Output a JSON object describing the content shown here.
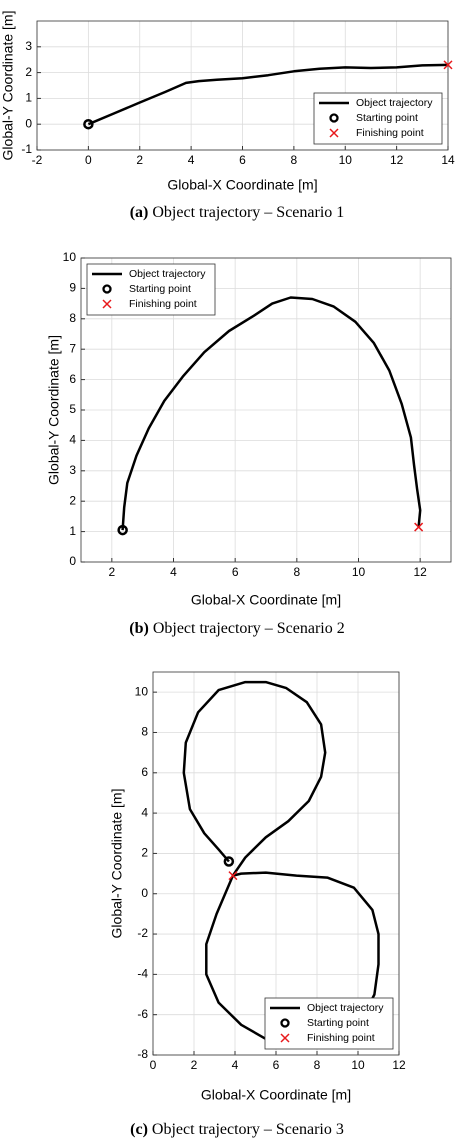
{
  "chart_data": [
    {
      "type": "line",
      "caption_tag": "(a)",
      "caption": "Object trajectory – Scenario 1",
      "xlabel": "Global-X Coordinate [m]",
      "ylabel": "Global-Y Coordinate [m]",
      "xlim": [
        -2,
        14
      ],
      "xticks": [
        -2,
        0,
        2,
        4,
        6,
        8,
        10,
        12,
        14
      ],
      "ylim": [
        -1,
        4
      ],
      "yticks": [
        -1,
        0,
        1,
        2,
        3
      ],
      "grid": true,
      "legend": "lower right",
      "series": [
        {
          "name": "Object trajectory",
          "color": "#000000",
          "marker": "line",
          "x": [
            0,
            1,
            2,
            3,
            3.8,
            4.3,
            5,
            6,
            7,
            8,
            9,
            10,
            11,
            12,
            13,
            14
          ],
          "values": [
            0,
            0.42,
            0.84,
            1.25,
            1.6,
            1.67,
            1.72,
            1.78,
            1.9,
            2.05,
            2.15,
            2.2,
            2.18,
            2.2,
            2.28,
            2.3
          ]
        },
        {
          "name": "Starting point",
          "color": "#000000",
          "marker": "o",
          "x": [
            0
          ],
          "values": [
            0
          ]
        },
        {
          "name": "Finishing point",
          "color": "#e8191c",
          "marker": "x",
          "x": [
            14
          ],
          "values": [
            2.3
          ]
        }
      ]
    },
    {
      "type": "line",
      "caption_tag": "(b)",
      "caption": "Object trajectory – Scenario 2",
      "xlabel": "Global-X Coordinate [m]",
      "ylabel": "Global-Y Coordinate [m]",
      "xlim": [
        1,
        13
      ],
      "xticks": [
        2,
        4,
        6,
        8,
        10,
        12
      ],
      "ylim": [
        0,
        10
      ],
      "yticks": [
        0,
        1,
        2,
        3,
        4,
        5,
        6,
        7,
        8,
        9,
        10
      ],
      "grid": true,
      "legend": "upper left",
      "series": [
        {
          "name": "Object trajectory",
          "color": "#000000",
          "marker": "line",
          "x": [
            2.35,
            2.4,
            2.5,
            2.8,
            3.2,
            3.7,
            4.3,
            5,
            5.8,
            6.6,
            7.2,
            7.8,
            8.5,
            9.2,
            9.9,
            10.5,
            11,
            11.4,
            11.7,
            11.8,
            11.9,
            12,
            11.95
          ],
          "values": [
            1.05,
            1.8,
            2.6,
            3.5,
            4.4,
            5.3,
            6.1,
            6.9,
            7.6,
            8.1,
            8.5,
            8.7,
            8.65,
            8.4,
            7.9,
            7.2,
            6.3,
            5.2,
            4.1,
            3.2,
            2.4,
            1.7,
            1.15
          ]
        },
        {
          "name": "Starting point",
          "color": "#000000",
          "marker": "o",
          "x": [
            2.35
          ],
          "values": [
            1.05
          ]
        },
        {
          "name": "Finishing point",
          "color": "#e8191c",
          "marker": "x",
          "x": [
            11.95
          ],
          "values": [
            1.15
          ]
        }
      ]
    },
    {
      "type": "line",
      "caption_tag": "(c)",
      "caption": "Object trajectory – Scenario 3",
      "xlabel": "Global-X Coordinate [m]",
      "ylabel": "Global-Y Coordinate [m]",
      "xlim": [
        0,
        12
      ],
      "xticks": [
        0,
        2,
        4,
        6,
        8,
        10,
        12
      ],
      "ylim": [
        -8,
        11
      ],
      "yticks": [
        -8,
        -6,
        -4,
        -2,
        0,
        2,
        4,
        6,
        8,
        10
      ],
      "grid": true,
      "legend": "lower right",
      "series": [
        {
          "name": "Object trajectory",
          "color": "#000000",
          "marker": "line",
          "x": [
            3.7,
            3.2,
            2.5,
            1.8,
            1.5,
            1.6,
            2.2,
            3.2,
            4.5,
            5.5,
            6.5,
            7.5,
            8.2,
            8.4,
            8.2,
            7.6,
            6.6,
            5.5,
            4.5,
            3.9,
            4.3,
            5.5,
            7,
            8.5,
            9.8,
            10.7,
            11,
            11,
            10.8,
            10.2,
            9.2,
            8,
            6.7,
            5.5,
            4.3,
            3.2,
            2.6,
            2.6,
            3.1,
            3.9
          ],
          "values": [
            1.6,
            2.2,
            3,
            4.2,
            6,
            7.5,
            9,
            10.1,
            10.5,
            10.5,
            10.2,
            9.5,
            8.4,
            7,
            5.8,
            4.6,
            3.6,
            2.8,
            1.8,
            0.9,
            1,
            1.05,
            0.9,
            0.8,
            0.3,
            -0.8,
            -2,
            -3.5,
            -5,
            -6.2,
            -7,
            -7.4,
            -7.5,
            -7.2,
            -6.5,
            -5.4,
            -4,
            -2.5,
            -1,
            0.9
          ]
        },
        {
          "name": "Starting point",
          "color": "#000000",
          "marker": "o",
          "x": [
            3.7
          ],
          "values": [
            1.6
          ]
        },
        {
          "name": "Finishing point",
          "color": "#e8191c",
          "marker": "x",
          "x": [
            3.9
          ],
          "values": [
            0.9
          ]
        }
      ]
    }
  ]
}
